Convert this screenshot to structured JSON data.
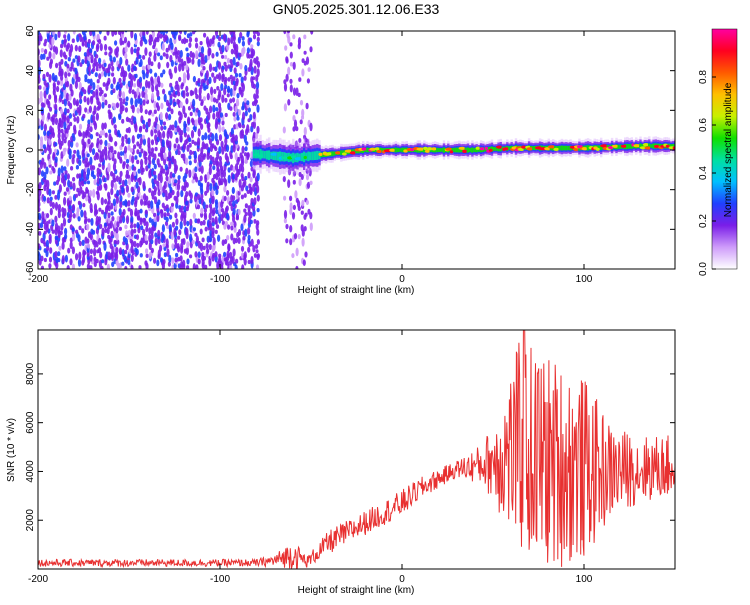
{
  "title": "GN05.2025.301.12.06.E33",
  "chart_data": [
    {
      "type": "heatmap",
      "title": "GN05.2025.301.12.06.E33",
      "xlabel": "Height of straight line (km)",
      "ylabel": "Frequency (Hz)",
      "xlim": [
        -200,
        150
      ],
      "ylim": [
        -60,
        60
      ],
      "x_ticks": [
        -200,
        -100,
        0,
        100
      ],
      "x_tick_labels": [
        "-200",
        "-100",
        "0",
        "100"
      ],
      "y_ticks": [
        -60,
        -40,
        -20,
        0,
        20,
        40,
        60
      ],
      "y_tick_labels": [
        "-60",
        "-40",
        "-20",
        "0",
        "20",
        "40",
        "60"
      ],
      "colorbar": {
        "label": "Normalized spectral amplitude",
        "range": [
          0,
          1
        ],
        "ticks": [
          0,
          0.2,
          0.4,
          0.6,
          0.8
        ],
        "tick_labels": [
          "0.0",
          "0.2",
          "0.4",
          "0.6",
          "0.8"
        ],
        "stops": [
          "#ffffff",
          "#ce9cfa",
          "#7a1ee8",
          "#2040ff",
          "#00c0ff",
          "#00e0a0",
          "#10e000",
          "#c8f000",
          "#ffc000",
          "#ff5a00",
          "#ff0020",
          "#ff00a0"
        ]
      },
      "ridge": [
        {
          "x": -80,
          "f": -2
        },
        {
          "x": -70,
          "f": -3
        },
        {
          "x": -60,
          "f": -4
        },
        {
          "x": -50,
          "f": -3
        },
        {
          "x": -40,
          "f": -2
        },
        {
          "x": -20,
          "f": 0
        },
        {
          "x": 0,
          "f": 0
        },
        {
          "x": 20,
          "f": 0
        },
        {
          "x": 40,
          "f": 0
        },
        {
          "x": 60,
          "f": 1
        },
        {
          "x": 80,
          "f": 1
        },
        {
          "x": 100,
          "f": 1
        },
        {
          "x": 130,
          "f": 2
        },
        {
          "x": 150,
          "f": 2
        }
      ],
      "noise_region": [
        -200,
        -80
      ],
      "noise_band": [
        -65,
        -50
      ]
    },
    {
      "type": "line",
      "xlabel": "Height of straight line (km)",
      "ylabel": "SNR (10 * v/v)",
      "xlim": [
        -200,
        150
      ],
      "ylim": [
        0,
        9800
      ],
      "x_ticks": [
        -200,
        -100,
        0,
        100
      ],
      "x_tick_labels": [
        "-200",
        "-100",
        "0",
        "100"
      ],
      "y_ticks": [
        2000,
        4000,
        6000,
        8000
      ],
      "y_tick_labels": [
        "2000",
        "4000",
        "6000",
        "8000"
      ],
      "color": "#e83030",
      "envelope": [
        {
          "x": -200,
          "base": 250,
          "amp": 150
        },
        {
          "x": -80,
          "base": 250,
          "amp": 150
        },
        {
          "x": -70,
          "base": 350,
          "amp": 250
        },
        {
          "x": -60,
          "base": 600,
          "amp": 600
        },
        {
          "x": -52,
          "base": 300,
          "amp": 250
        },
        {
          "x": -40,
          "base": 1100,
          "amp": 500
        },
        {
          "x": -30,
          "base": 1500,
          "amp": 500
        },
        {
          "x": -10,
          "base": 2300,
          "amp": 500
        },
        {
          "x": 0,
          "base": 2700,
          "amp": 550
        },
        {
          "x": 10,
          "base": 3300,
          "amp": 450
        },
        {
          "x": 30,
          "base": 4100,
          "amp": 350
        },
        {
          "x": 45,
          "base": 4300,
          "amp": 900
        },
        {
          "x": 55,
          "base": 4600,
          "amp": 2600
        },
        {
          "x": 65,
          "base": 5000,
          "amp": 4500
        },
        {
          "x": 80,
          "base": 4400,
          "amp": 4500
        },
        {
          "x": 100,
          "base": 4100,
          "amp": 3800
        },
        {
          "x": 115,
          "base": 4000,
          "amp": 1900
        },
        {
          "x": 130,
          "base": 4100,
          "amp": 1400
        },
        {
          "x": 150,
          "base": 4200,
          "amp": 1300
        }
      ],
      "peak": {
        "x": 67,
        "y": 9800
      }
    }
  ]
}
